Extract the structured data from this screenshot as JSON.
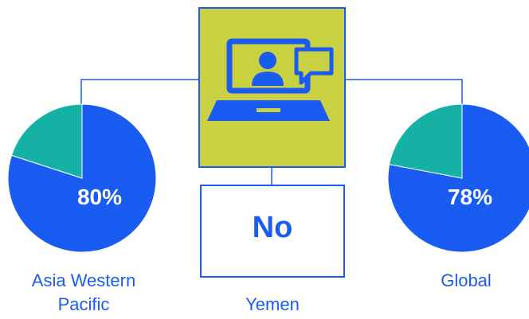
{
  "chart_data": [
    {
      "type": "pie",
      "title": "Asia Western Pacific",
      "values": [
        80,
        20
      ],
      "value_labels": [
        "80%",
        null
      ],
      "colors": [
        "#1a5cf2",
        "#14b1a4"
      ]
    },
    {
      "type": "pie",
      "title": "Global",
      "values": [
        78,
        22
      ],
      "value_labels": [
        "78%",
        null
      ],
      "colors": [
        "#1a5cf2",
        "#14b1a4"
      ]
    }
  ],
  "center": {
    "value": "No",
    "label": "Yemen"
  }
}
